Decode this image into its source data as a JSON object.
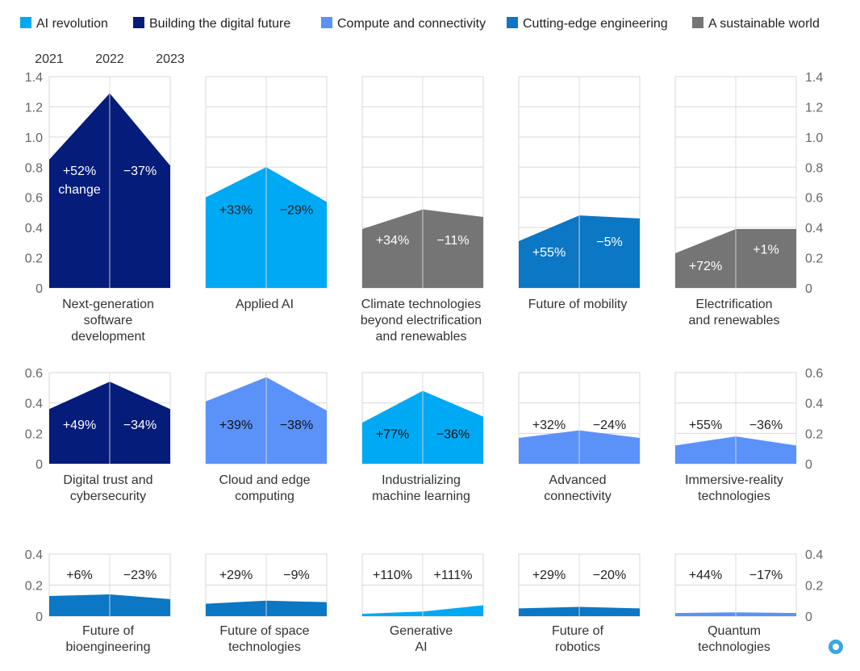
{
  "colors": {
    "ai_revolution": "#00a9f4",
    "digital_future": "#051c7a",
    "compute": "#5b92f9",
    "engineering": "#0b77c5",
    "sustainable": "#757575",
    "grid": "#d9d9d9"
  },
  "chart_data": {
    "type": "area",
    "legend": {
      "placement": "top",
      "entries": [
        {
          "label": "AI revolution",
          "color_key": "ai_revolution"
        },
        {
          "label": "Building the digital future",
          "color_key": "digital_future"
        },
        {
          "label": "Compute and connectivity",
          "color_key": "compute"
        },
        {
          "label": "Cutting-edge engineering",
          "color_key": "engineering"
        },
        {
          "label": "A sustainable world",
          "color_key": "sustainable"
        }
      ]
    },
    "years": [
      "2021",
      "2022",
      "2023"
    ],
    "change_note": "change",
    "rows": [
      {
        "ylim": [
          0,
          1.4
        ],
        "ticks": [
          "0",
          "0.2",
          "0.4",
          "0.6",
          "0.8",
          "1.0",
          "1.2",
          "1.4"
        ],
        "panels": [
          {
            "title": [
              "Next-generation",
              "software",
              "development"
            ],
            "color_key": "digital_future",
            "values": [
              0.85,
              1.29,
              0.81
            ],
            "changes": [
              "+52%",
              "−37%"
            ],
            "label_y": [
              0.78,
              0.78
            ],
            "label_color": "#ffffff"
          },
          {
            "title": [
              "Applied AI"
            ],
            "color_key": "ai_revolution",
            "values": [
              0.6,
              0.8,
              0.57
            ],
            "changes": [
              "+33%",
              "−29%"
            ],
            "label_y": [
              0.52,
              0.52
            ],
            "label_color": "#222222"
          },
          {
            "title": [
              "Climate technologies",
              "beyond electrification",
              "and renewables"
            ],
            "color_key": "sustainable",
            "values": [
              0.39,
              0.52,
              0.47
            ],
            "changes": [
              "+34%",
              "−11%"
            ],
            "label_y": [
              0.32,
              0.32
            ],
            "label_color": "#ffffff"
          },
          {
            "title": [
              "Future of mobility"
            ],
            "color_key": "engineering",
            "values": [
              0.31,
              0.48,
              0.46
            ],
            "changes": [
              "+55%",
              "−5%"
            ],
            "label_y": [
              0.24,
              0.31
            ],
            "label_color": "#ffffff"
          },
          {
            "title": [
              "Electrification",
              "and renewables"
            ],
            "color_key": "sustainable",
            "values": [
              0.23,
              0.39,
              0.39
            ],
            "changes": [
              "+72%",
              "+1%"
            ],
            "label_y": [
              0.15,
              0.26
            ],
            "label_color": "#ffffff"
          }
        ]
      },
      {
        "ylim": [
          0,
          0.6
        ],
        "ticks": [
          "0",
          "0.2",
          "0.4",
          "0.6"
        ],
        "panels": [
          {
            "title": [
              "Digital trust and",
              "cybersecurity"
            ],
            "color_key": "digital_future",
            "values": [
              0.36,
              0.54,
              0.36
            ],
            "changes": [
              "+49%",
              "−34%"
            ],
            "label_y": [
              0.26,
              0.26
            ],
            "label_color": "#ffffff"
          },
          {
            "title": [
              "Cloud and edge",
              "computing"
            ],
            "color_key": "compute",
            "values": [
              0.41,
              0.57,
              0.35
            ],
            "changes": [
              "+39%",
              "−38%"
            ],
            "label_y": [
              0.26,
              0.26
            ],
            "label_color": "#111111"
          },
          {
            "title": [
              "Industrializing",
              "machine learning"
            ],
            "color_key": "ai_revolution",
            "values": [
              0.27,
              0.48,
              0.31
            ],
            "changes": [
              "+77%",
              "−36%"
            ],
            "label_y": [
              0.2,
              0.2
            ],
            "label_color": "#111111"
          },
          {
            "title": [
              "Advanced",
              "connectivity"
            ],
            "color_key": "compute",
            "values": [
              0.17,
              0.22,
              0.17
            ],
            "changes": [
              "+32%",
              "−24%"
            ],
            "label_y": [
              0.26,
              0.26
            ],
            "label_color": "#222222"
          },
          {
            "title": [
              "Immersive-reality",
              "technologies"
            ],
            "color_key": "compute",
            "values": [
              0.12,
              0.18,
              0.12
            ],
            "changes": [
              "+55%",
              "−36%"
            ],
            "label_y": [
              0.26,
              0.26
            ],
            "label_color": "#222222"
          }
        ]
      },
      {
        "ylim": [
          0,
          0.4
        ],
        "ticks": [
          "0",
          "0.2",
          "0.4"
        ],
        "panels": [
          {
            "title": [
              "Future of",
              "bioengineering"
            ],
            "color_key": "engineering",
            "values": [
              0.13,
              0.14,
              0.11
            ],
            "changes": [
              "+6%",
              "−23%"
            ],
            "label_y": [
              0.27,
              0.27
            ],
            "label_color": "#222222"
          },
          {
            "title": [
              "Future of space",
              "technologies"
            ],
            "color_key": "engineering",
            "values": [
              0.08,
              0.1,
              0.09
            ],
            "changes": [
              "+29%",
              "−9%"
            ],
            "label_y": [
              0.27,
              0.27
            ],
            "label_color": "#222222"
          },
          {
            "title": [
              "Generative",
              "AI"
            ],
            "color_key": "ai_revolution",
            "values": [
              0.015,
              0.03,
              0.07
            ],
            "changes": [
              "+110%",
              "+111%"
            ],
            "label_y": [
              0.27,
              0.27
            ],
            "label_color": "#222222"
          },
          {
            "title": [
              "Future of",
              "robotics"
            ],
            "color_key": "engineering",
            "values": [
              0.05,
              0.06,
              0.05
            ],
            "changes": [
              "+29%",
              "−20%"
            ],
            "label_y": [
              0.27,
              0.27
            ],
            "label_color": "#222222"
          },
          {
            "title": [
              "Quantum",
              "technologies"
            ],
            "color_key": "compute",
            "values": [
              0.02,
              0.025,
              0.02
            ],
            "changes": [
              "+44%",
              "−17%"
            ],
            "label_y": [
              0.27,
              0.27
            ],
            "label_color": "#222222"
          }
        ]
      }
    ]
  }
}
